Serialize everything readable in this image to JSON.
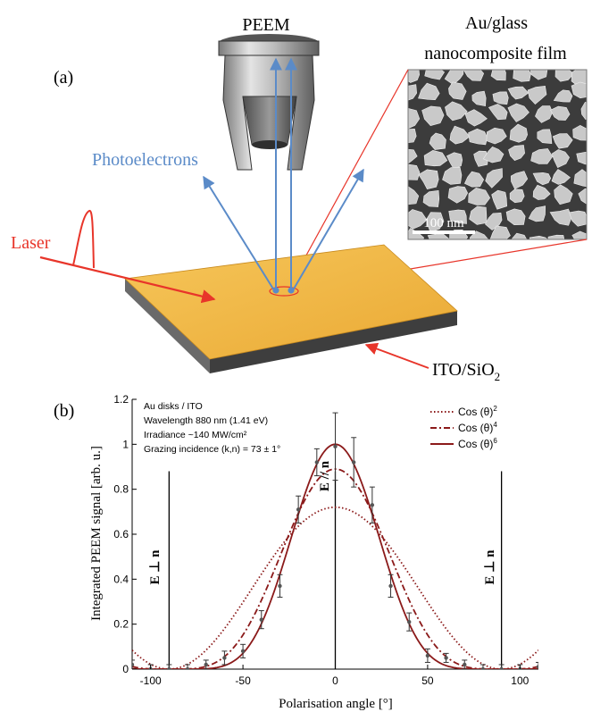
{
  "panel_a": {
    "label": "(a)",
    "peem_label": "PEEM",
    "film_label_line1": "Au/glass",
    "film_label_line2": "nanocomposite film",
    "photoelectrons_label": "Photoelectrons",
    "laser_label": "Laser",
    "substrate_label_main": "ITO/SiO",
    "substrate_label_sub": "2",
    "scale_bar_label": "100 nm"
  },
  "panel_b": {
    "label": "(b)",
    "info_lines": [
      "Au disks / ITO",
      "Wavelength 880 nm (1.41 eV)",
      "Irradiance ~140 MW/cm²",
      "Grazing incidence (k,n) = 73 ± 1°"
    ],
    "orientation_labels": {
      "left": "E ⊥ n",
      "center": "E // n",
      "right": "E ⊥ n"
    }
  },
  "chart_data": {
    "type": "line",
    "xlabel": "Polarisation angle [°]",
    "ylabel": "Integrated PEEM signal [arb. u.]",
    "xlim": [
      -110,
      110
    ],
    "ylim": [
      0,
      1.2
    ],
    "xticks": [
      -100,
      -50,
      0,
      50,
      100
    ],
    "yticks": [
      0,
      0.2,
      0.4,
      0.6,
      0.8,
      1.0,
      1.2
    ],
    "xtick_labels": [
      "-100",
      "-50",
      "0",
      "50",
      "100"
    ],
    "ytick_labels": [
      "0",
      "0.2",
      "0.4",
      "0.6",
      "0.8",
      "1",
      "1.2"
    ],
    "grid": false,
    "legend_position": "top-right",
    "series": [
      {
        "name": "Cos (θ)",
        "exponent": "2",
        "amplitude": 0.72,
        "power": 2,
        "style": "dotted",
        "color": "#8b1a1a"
      },
      {
        "name": "Cos (θ)",
        "exponent": "4",
        "amplitude": 0.89,
        "power": 4,
        "style": "dashdot",
        "color": "#8b1a1a"
      },
      {
        "name": "Cos (θ)",
        "exponent": "6",
        "amplitude": 1.0,
        "power": 6,
        "style": "solid",
        "color": "#8b1a1a"
      }
    ],
    "vlines": [
      -90,
      0,
      90
    ],
    "measurements": [
      {
        "x": -110,
        "y": 0.02,
        "err": 0.02
      },
      {
        "x": -100,
        "y": 0.0,
        "err": 0.02
      },
      {
        "x": -90,
        "y": 0.0,
        "err": 0.02
      },
      {
        "x": -80,
        "y": 0.0,
        "err": 0.02
      },
      {
        "x": -70,
        "y": 0.02,
        "err": 0.02
      },
      {
        "x": -60,
        "y": 0.05,
        "err": 0.03
      },
      {
        "x": -50,
        "y": 0.08,
        "err": 0.03
      },
      {
        "x": -40,
        "y": 0.22,
        "err": 0.04
      },
      {
        "x": -30,
        "y": 0.37,
        "err": 0.05
      },
      {
        "x": -20,
        "y": 0.71,
        "err": 0.06
      },
      {
        "x": -10,
        "y": 0.92,
        "err": 0.06
      },
      {
        "x": 0,
        "y": 0.99,
        "err": 0.15
      },
      {
        "x": 10,
        "y": 0.92,
        "err": 0.11
      },
      {
        "x": 20,
        "y": 0.73,
        "err": 0.08
      },
      {
        "x": 30,
        "y": 0.37,
        "err": 0.05
      },
      {
        "x": 40,
        "y": 0.21,
        "err": 0.04
      },
      {
        "x": 50,
        "y": 0.06,
        "err": 0.03
      },
      {
        "x": 60,
        "y": 0.05,
        "err": 0.02
      },
      {
        "x": 70,
        "y": 0.02,
        "err": 0.02
      },
      {
        "x": 80,
        "y": 0.0,
        "err": 0.02
      },
      {
        "x": 90,
        "y": 0.0,
        "err": 0.02
      },
      {
        "x": 100,
        "y": 0.0,
        "err": 0.02
      },
      {
        "x": 110,
        "y": 0.01,
        "err": 0.02
      }
    ]
  },
  "colors": {
    "laser": "#e8352a",
    "photoelectrons": "#5b8bc8",
    "curves": "#8b1a1a",
    "sample_top": "#f2b544",
    "sample_side": "#444444",
    "nano_background": "#3c3c3c",
    "nano_islands": "#c9c9c9"
  }
}
